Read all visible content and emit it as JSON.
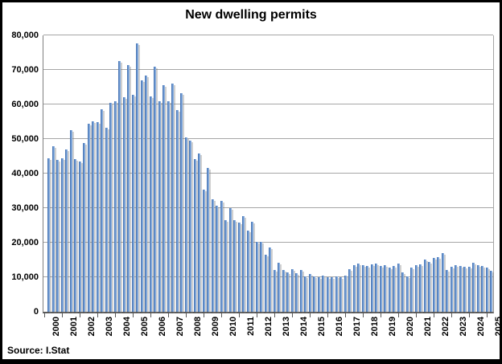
{
  "window": {
    "background": "#ffffff",
    "border_color": "#000000"
  },
  "title": "New dwelling permits",
  "source_label": "Source: I.Stat",
  "chart_data": {
    "type": "bar",
    "title": "New dwelling permits",
    "frequency": "quarterly",
    "xlabel": "",
    "ylabel": "",
    "legend": "none",
    "grid": true,
    "ylim": [
      0,
      80000
    ],
    "y_tick_values": [
      0,
      10000,
      20000,
      30000,
      40000,
      50000,
      60000,
      70000,
      80000
    ],
    "y_tick_labels": [
      "0",
      "10,000",
      "20,000",
      "30,000",
      "40,000",
      "50,000",
      "60,000",
      "70,000",
      "80,000"
    ],
    "x_tick_labels": [
      "2000",
      "2001",
      "2002",
      "2003",
      "2004",
      "2005",
      "2006",
      "2007",
      "2008",
      "2009",
      "2010",
      "2011",
      "2012",
      "2013",
      "2014",
      "2015",
      "2016",
      "2017",
      "2018",
      "2019",
      "2020",
      "2021",
      "2022",
      "2023",
      "2024",
      "2025"
    ],
    "values": [
      44500,
      47800,
      44000,
      44500,
      46900,
      52500,
      44300,
      43500,
      48800,
      54500,
      55000,
      54800,
      58700,
      53200,
      60500,
      61000,
      72500,
      62200,
      71400,
      62800,
      77600,
      66900,
      68300,
      62400,
      70900,
      60900,
      65500,
      60900,
      66100,
      58400,
      63300,
      50500,
      49500,
      44100,
      45900,
      35300,
      41600,
      32500,
      30600,
      32200,
      26400,
      30000,
      26600,
      25800,
      27700,
      23600,
      26100,
      20300,
      20300,
      16600,
      18500,
      12000,
      14100,
      12100,
      11500,
      12400,
      11100,
      12000,
      10200,
      10900,
      10300,
      10000,
      10500,
      10000,
      9900,
      10300,
      10000,
      10400,
      12300,
      13500,
      13900,
      13600,
      13200,
      13700,
      14000,
      13300,
      13600,
      12800,
      13300,
      13900,
      11400,
      10300,
      12700,
      13600,
      13800,
      15000,
      14400,
      15500,
      15800,
      16900,
      12200,
      13000,
      13400,
      13300,
      13000,
      13100,
      14200,
      13400,
      13300,
      12800,
      11900
    ],
    "bar_color_gradient": [
      "#3e6cab",
      "#6f9bd4",
      "#9dbde4"
    ],
    "shadow_color": "rgba(120,120,120,0.35)",
    "gridline_color": "#a6a6a6",
    "axis_color": "#595959",
    "source": "Source: I.Stat"
  }
}
